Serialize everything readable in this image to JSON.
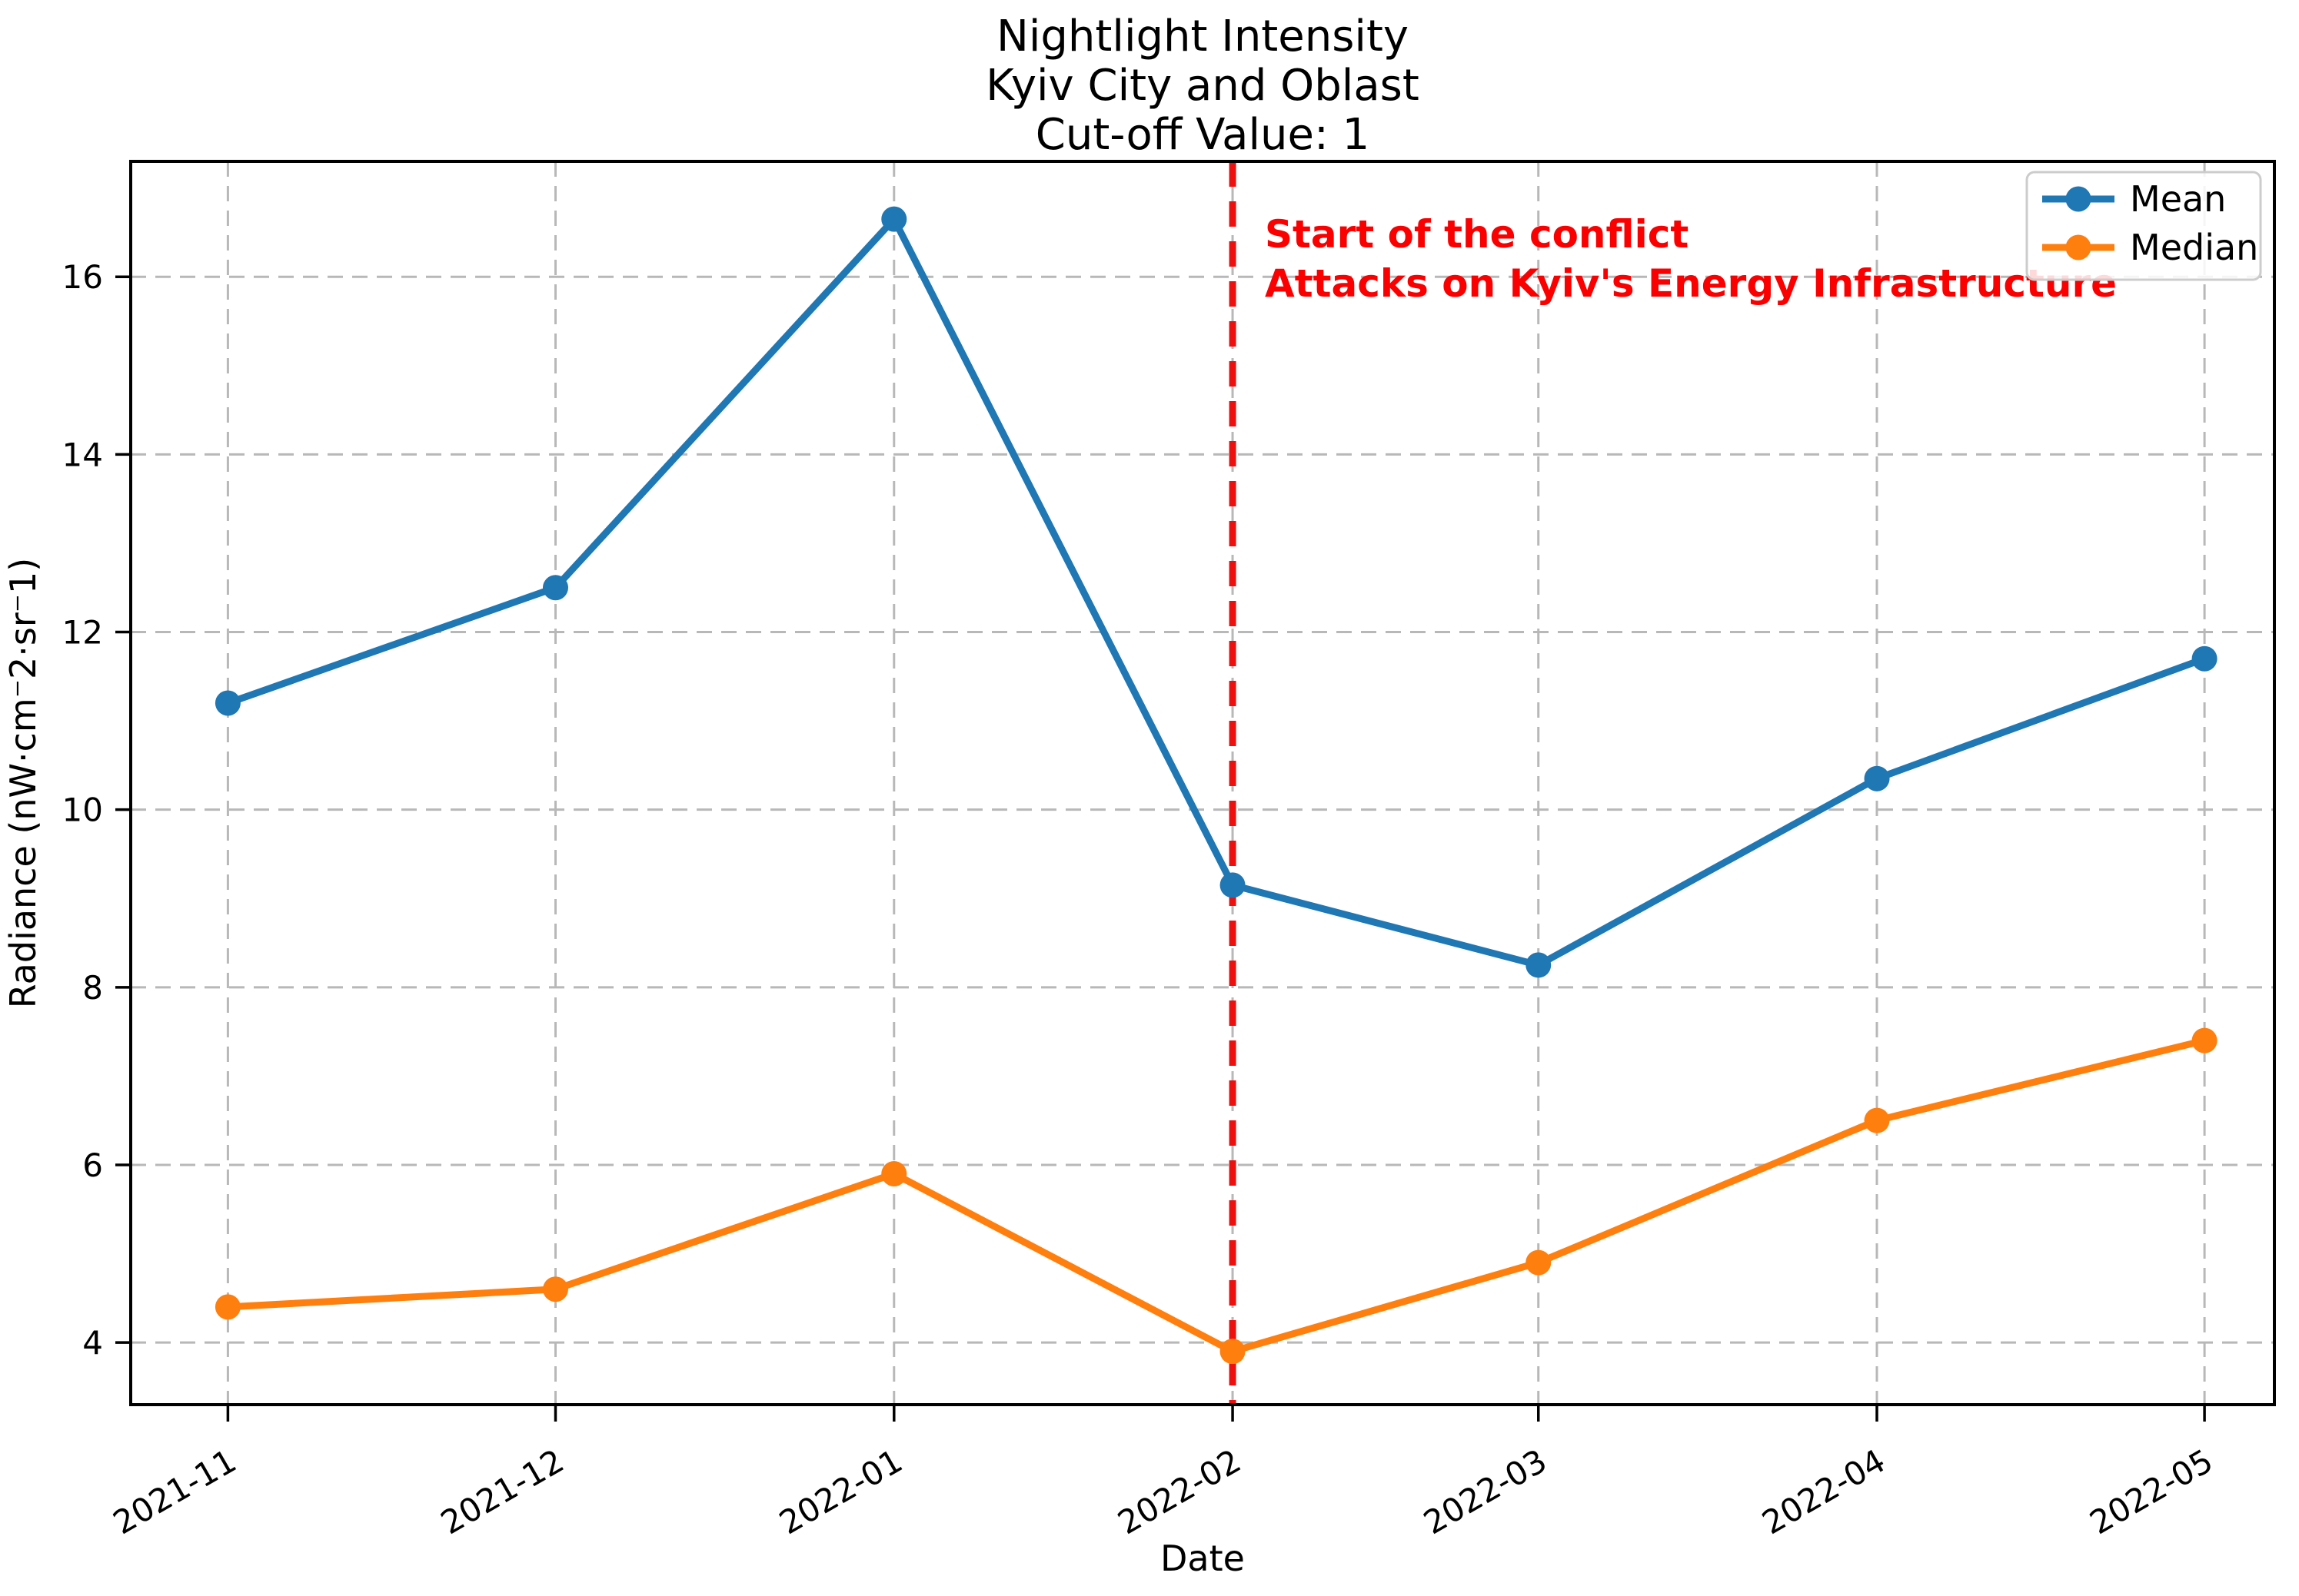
{
  "chart_data": {
    "type": "line",
    "title_lines": [
      "Nightlight Intensity",
      "Kyiv City and Oblast",
      "Cut-off Value: 1"
    ],
    "title": "Nightlight Intensity\nKyiv City and Oblast\nCut-off Value: 1",
    "xlabel": "Date",
    "ylabel": "Radiance (nW·cm⁻2·sr⁻1)",
    "categories": [
      "2021-11",
      "2021-12",
      "2022-01",
      "2022-02",
      "2022-03",
      "2022-04",
      "2022-05"
    ],
    "x_day_offsets": [
      0,
      30,
      61,
      92,
      120,
      151,
      181
    ],
    "series": [
      {
        "name": "Mean",
        "color": "#1f77b4",
        "values": [
          11.2,
          12.5,
          16.65,
          9.15,
          8.25,
          10.35,
          11.7
        ]
      },
      {
        "name": "Median",
        "color": "#ff7f0e",
        "values": [
          4.4,
          4.6,
          5.9,
          3.9,
          4.9,
          6.5,
          7.4
        ]
      }
    ],
    "yticks": [
      4,
      6,
      8,
      10,
      12,
      14,
      16
    ],
    "ylim": [
      3.3,
      17.3
    ],
    "xlim_days": [
      -8.9,
      187.4
    ],
    "grid": true,
    "legend_position": "upper right",
    "vline": {
      "x_category": "2022-02",
      "x_day": 92,
      "color": "#ee0f0f",
      "style": "dashed"
    },
    "annotation": {
      "lines": [
        "Start of the conflict",
        "Attacks on Kyiv's Energy Infrastructure"
      ],
      "color": "#fa0000"
    },
    "grid_color": "#b8b8b8",
    "tick_label_rotation_deg": 30
  }
}
